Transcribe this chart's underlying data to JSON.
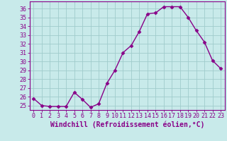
{
  "x": [
    0,
    1,
    2,
    3,
    4,
    5,
    6,
    7,
    8,
    9,
    10,
    11,
    12,
    13,
    14,
    15,
    16,
    17,
    18,
    19,
    20,
    21,
    22,
    23
  ],
  "y": [
    25.8,
    25.0,
    24.9,
    24.9,
    24.9,
    26.5,
    25.7,
    24.8,
    25.2,
    27.5,
    29.0,
    31.0,
    31.8,
    33.4,
    35.4,
    35.5,
    36.2,
    36.2,
    36.2,
    35.0,
    33.5,
    32.2,
    30.1,
    29.2
  ],
  "line_color": "#880088",
  "marker": "D",
  "markersize": 2.5,
  "linewidth": 1.0,
  "xlabel": "Windchill (Refroidissement éolien,°C)",
  "xlabel_color": "#880088",
  "xlim": [
    -0.5,
    23.5
  ],
  "ylim": [
    24.5,
    36.8
  ],
  "yticks": [
    25,
    26,
    27,
    28,
    29,
    30,
    31,
    32,
    33,
    34,
    35,
    36
  ],
  "xticks": [
    0,
    1,
    2,
    3,
    4,
    5,
    6,
    7,
    8,
    9,
    10,
    11,
    12,
    13,
    14,
    15,
    16,
    17,
    18,
    19,
    20,
    21,
    22,
    23
  ],
  "bg_color": "#c8eaea",
  "grid_color": "#a0cccc",
  "tick_color": "#880088",
  "tick_fontsize": 6.0,
  "xlabel_fontsize": 7.0,
  "spine_color": "#880088"
}
